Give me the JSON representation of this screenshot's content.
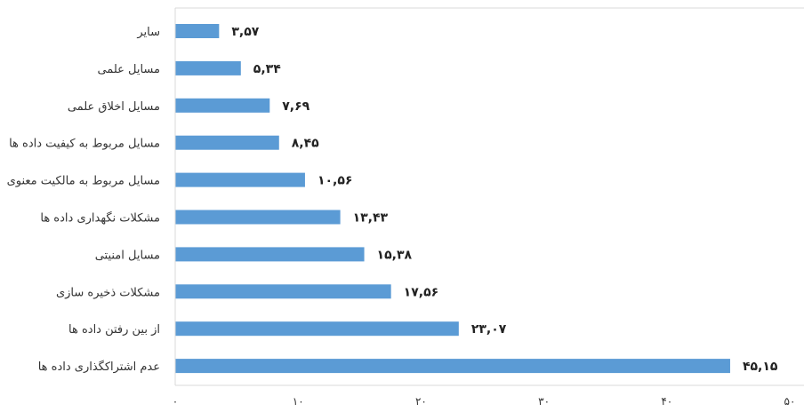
{
  "chart_data": {
    "type": "bar",
    "orientation": "horizontal",
    "title": "",
    "xlabel": "",
    "ylabel": "",
    "categories": [
      "سایر",
      "مسایل علمی",
      "مسایل اخلاق علمی",
      "مسایل مربوط به کیفیت داده ها",
      "مسایل مربوط به مالکیت معنوی",
      "مشکلات نگهداری داده ها",
      "مسایل امنیتی",
      "مشکلات ذخیره سازی",
      "از بین رفتن داده ها",
      "عدم اشتراکگذاری داده ها"
    ],
    "values": [
      3.57,
      5.34,
      7.69,
      8.45,
      10.56,
      13.43,
      15.38,
      17.56,
      23.07,
      45.15
    ],
    "value_labels": [
      "۳,۵۷",
      "۵,۳۴",
      "۷,۶۹",
      "۸,۴۵",
      "۱۰,۵۶",
      "۱۳,۴۳",
      "۱۵,۳۸",
      "۱۷,۵۶",
      "۲۳,۰۷",
      "۴۵,۱۵"
    ],
    "xlim": [
      0,
      50
    ],
    "xticks": [
      0,
      10,
      20,
      30,
      40,
      50
    ],
    "xtick_labels": [
      "۰",
      "۱۰",
      "۲۰",
      "۳۰",
      "۴۰",
      "۵۰"
    ],
    "grid": false,
    "legend": "none",
    "bar_color": "#5b9bd5",
    "axis_color": "#d9d9d9"
  }
}
